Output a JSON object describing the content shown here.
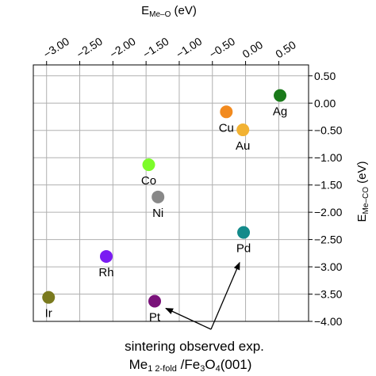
{
  "chart_data": {
    "type": "scatter",
    "title": "",
    "xlabel": {
      "main": "E",
      "sub": "Me–O",
      "unit": " (eV)"
    },
    "ylabel": {
      "main": "E",
      "sub": "Me–CO",
      "unit": " (eV)"
    },
    "xlim": [
      -3.2,
      0.95
    ],
    "ylim": [
      -4.0,
      0.7
    ],
    "x_axis_position": "top",
    "y_axis_position": "right",
    "grid": true,
    "x_ticks": [
      -3.0,
      -2.5,
      -2.0,
      -1.5,
      -1.0,
      -0.5,
      0.0,
      0.5
    ],
    "x_tick_labels": [
      "−3.00",
      "−2.50",
      "−2.00",
      "−1.50",
      "−1.00",
      "−0.50",
      "0.00",
      "0.50"
    ],
    "y_ticks": [
      0.5,
      0.0,
      -0.5,
      -1.0,
      -1.5,
      -2.0,
      -2.5,
      -3.0,
      -3.5,
      -4.0
    ],
    "y_tick_labels": [
      "0.50",
      "0.00",
      "−0.50",
      "−1.00",
      "−1.50",
      "−2.00",
      "−2.50",
      "−3.00",
      "−3.50",
      "−4.00"
    ],
    "points": [
      {
        "label": "Ag",
        "x": 0.52,
        "y": 0.14,
        "color": "#1a7a1a",
        "label_pos": "below"
      },
      {
        "label": "Cu",
        "x": -0.29,
        "y": -0.16,
        "color": "#f28a1e",
        "label_pos": "below"
      },
      {
        "label": "Au",
        "x": -0.04,
        "y": -0.49,
        "color": "#f2b233",
        "label_pos": "below"
      },
      {
        "label": "Co",
        "x": -1.46,
        "y": -1.13,
        "color": "#7cfc2a",
        "label_pos": "below"
      },
      {
        "label": "Ni",
        "x": -1.32,
        "y": -1.72,
        "color": "#888888",
        "label_pos": "below"
      },
      {
        "label": "Pd",
        "x": -0.03,
        "y": -2.37,
        "color": "#138a8a",
        "label_pos": "below"
      },
      {
        "label": "Rh",
        "x": -2.1,
        "y": -2.81,
        "color": "#7a1cf2",
        "label_pos": "below"
      },
      {
        "label": "Ir",
        "x": -2.97,
        "y": -3.56,
        "color": "#7a7a1e",
        "label_pos": "below"
      },
      {
        "label": "Pt",
        "x": -1.37,
        "y": -3.63,
        "color": "#7a127a",
        "label_pos": "below"
      }
    ],
    "annotation": {
      "line1": "sintering observed exp.",
      "line2_a": "Me",
      "line2_sub1": "1",
      "line2_sub2": " 2-fold",
      "line2_b": " /Fe",
      "line2_sub3": "3",
      "line2_c": "O",
      "line2_sub4": "4",
      "line2_d": "(001)",
      "targets": [
        "Pt",
        "Pd"
      ]
    }
  }
}
